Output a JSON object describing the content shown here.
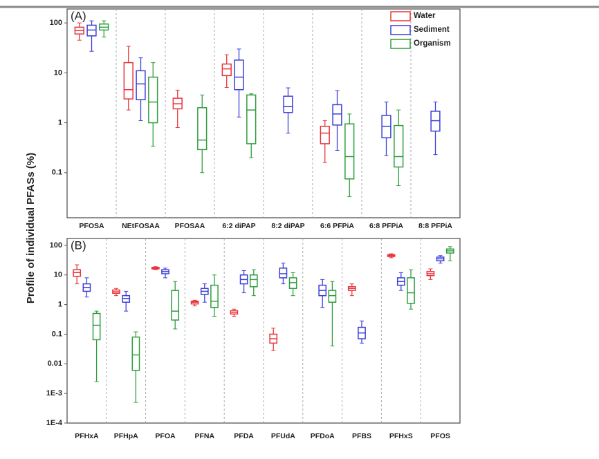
{
  "chart_data": [
    {
      "type": "box",
      "panel_label": "(A)",
      "ylabel": "Profile of individual PFASs (%)",
      "log_scale": true,
      "legend": "upper right",
      "categories": [
        "PFOSA",
        "NEtFOSAA",
        "PFOSAA",
        "6:2 diPAP",
        "8:2 diPAP",
        "6:6 PFPiA",
        "6:8 PFPiA",
        "8:8 PFPiA"
      ],
      "ylim": [
        0.0125,
        190
      ],
      "yticks": [
        0.1,
        1,
        10,
        100
      ],
      "series": [
        {
          "name": "Water",
          "color": "#e8333a",
          "values": [
            [
              45,
              60,
              70,
              82,
              100
            ],
            [
              1.8,
              3,
              4.6,
              16,
              34
            ],
            [
              0.8,
              1.9,
              2.4,
              3.1,
              4.5
            ],
            [
              5.1,
              8.8,
              12,
              15,
              23
            ],
            null,
            [
              0.16,
              0.38,
              0.62,
              0.85,
              1.1
            ],
            null,
            null
          ]
        },
        {
          "name": "Sediment",
          "color": "#3b3fd8",
          "values": [
            [
              27,
              55,
              72,
              90,
              110
            ],
            [
              1.1,
              2.9,
              6,
              11,
              20
            ],
            null,
            [
              1.3,
              4.6,
              8.2,
              18,
              30
            ],
            [
              0.62,
              1.6,
              2.1,
              3.4,
              5
            ],
            [
              0.28,
              0.9,
              1.5,
              2.3,
              4.4
            ],
            [
              0.22,
              0.5,
              0.85,
              1.4,
              2.6
            ],
            [
              0.23,
              0.68,
              1.1,
              1.7,
              2.6
            ]
          ]
        },
        {
          "name": "Organism",
          "color": "#2e9e3e",
          "values": [
            [
              52,
              72,
              82,
              95,
              110
            ],
            [
              0.34,
              1,
              2.6,
              8.2,
              16
            ],
            [
              0.1,
              0.29,
              0.45,
              2,
              3.6
            ],
            [
              0.2,
              0.38,
              1.8,
              3.6,
              3.8
            ],
            null,
            [
              0.033,
              0.075,
              0.21,
              0.95,
              1.5
            ],
            [
              0.055,
              0.13,
              0.21,
              0.88,
              1.8
            ],
            null
          ]
        }
      ]
    },
    {
      "type": "box",
      "panel_label": "(B)",
      "log_scale": true,
      "categories": [
        "PFHxA",
        "PFHpA",
        "PFOA",
        "PFNA",
        "PFDA",
        "PFUdA",
        "PFDoA",
        "PFBS",
        "PFHxS",
        "PFOS"
      ],
      "ylim": [
        0.0001,
        170
      ],
      "yticks": [
        100,
        10,
        1,
        0.1,
        0.01,
        {
          "value": 0.001,
          "label": "1E-3"
        },
        {
          "value": 0.0001,
          "label": "1E-4"
        }
      ],
      "series": [
        {
          "name": "Water",
          "color": "#e8333a",
          "values": [
            [
              5,
              9,
              12,
              15,
              22
            ],
            [
              2,
              2.4,
              2.7,
              3.1,
              3.5
            ],
            [
              15,
              16,
              17,
              18,
              19
            ],
            [
              0.9,
              1.05,
              1.2,
              1.3,
              1.4
            ],
            [
              0.4,
              0.48,
              0.55,
              0.62,
              0.7
            ],
            [
              0.028,
              0.05,
              0.07,
              0.1,
              0.16
            ],
            null,
            [
              2,
              3,
              3.5,
              4,
              5
            ],
            [
              38,
              42,
              45,
              48,
              52
            ],
            [
              7,
              9.5,
              11,
              13,
              16
            ]
          ]
        },
        {
          "name": "Sediment",
          "color": "#3b3fd8",
          "values": [
            [
              1.8,
              2.8,
              3.8,
              5,
              8
            ],
            [
              0.6,
              1.2,
              1.6,
              2,
              2.8
            ],
            [
              8,
              11,
              13,
              15,
              17
            ],
            [
              1.2,
              2.2,
              2.8,
              3.5,
              5
            ],
            [
              2.5,
              5,
              7,
              10,
              14
            ],
            [
              5,
              8,
              11,
              17,
              25
            ],
            [
              0.8,
              2,
              3,
              4.5,
              7
            ],
            [
              0.05,
              0.07,
              0.11,
              0.17,
              0.28
            ],
            [
              3,
              4.5,
              6,
              8,
              12
            ],
            [
              25,
              30,
              35,
              40,
              45
            ]
          ]
        },
        {
          "name": "Organism",
          "color": "#2e9e3e",
          "values": [
            [
              0.0025,
              0.065,
              0.2,
              0.5,
              0.6
            ],
            [
              0.0005,
              0.006,
              0.02,
              0.08,
              0.12
            ],
            [
              0.15,
              0.3,
              0.6,
              3,
              6
            ],
            [
              0.4,
              0.8,
              1.3,
              4.5,
              10
            ],
            [
              2,
              4,
              7,
              10,
              15
            ],
            [
              2,
              3.5,
              5.5,
              8,
              12
            ],
            [
              0.04,
              1.2,
              2,
              3,
              6
            ],
            null,
            [
              0.7,
              1.1,
              2.5,
              8,
              15
            ],
            [
              30,
              55,
              65,
              75,
              90
            ]
          ]
        }
      ]
    }
  ]
}
